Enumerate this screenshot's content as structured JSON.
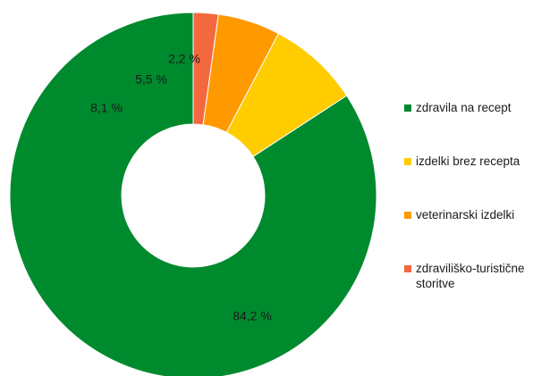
{
  "chart_data": {
    "type": "pie",
    "donut": true,
    "title": "",
    "categories": [
      "zdravila na recept",
      "izdelki brez recepta",
      "veterinarski izdelki",
      "zdraviliško-turistične storitve"
    ],
    "values": [
      84.2,
      8.1,
      5.5,
      2.2
    ],
    "labels": [
      "84,2 %",
      "8,1 %",
      "5,5 %",
      "2,2 %"
    ],
    "colors": [
      "#008a2e",
      "#ffcc00",
      "#ff9900",
      "#f4683f"
    ],
    "legend_position": "right"
  },
  "legend": {
    "items": [
      {
        "label": "zdravila na recept",
        "color": "#008a2e"
      },
      {
        "label": "izdelki brez recepta",
        "color": "#ffcc00"
      },
      {
        "label": "veterinarski izdelki",
        "color": "#ff9900"
      },
      {
        "label": "zdraviliško-turistične storitve",
        "color": "#f4683f"
      }
    ]
  }
}
